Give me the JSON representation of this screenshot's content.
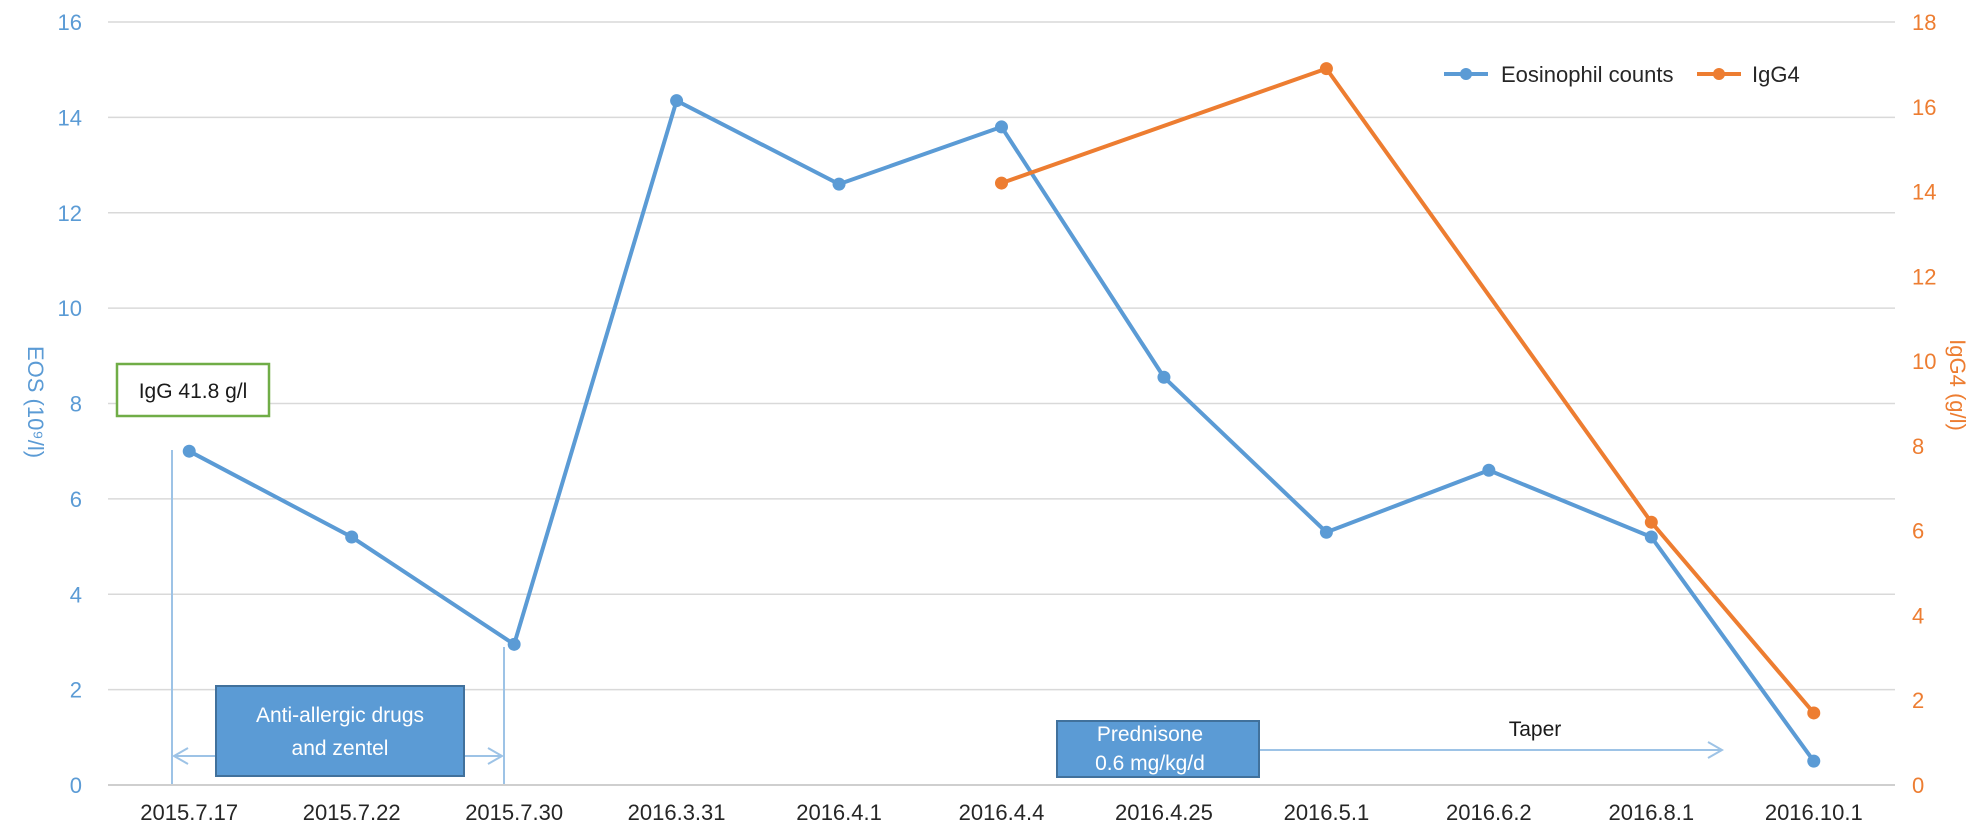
{
  "chart_data": {
    "type": "line",
    "categories": [
      "2015.7.17",
      "2015.7.22",
      "2015.7.30",
      "2016.3.31",
      "2016.4.1",
      "2016.4.4",
      "2016.4.25",
      "2016.5.1",
      "2016.6.2",
      "2016.8.1",
      "2016.10.1"
    ],
    "series": [
      {
        "name": "Eosinophil counts",
        "axis": "left",
        "color": "#5b9bd5",
        "values": [
          7.0,
          5.2,
          2.95,
          14.35,
          12.6,
          13.8,
          8.55,
          5.3,
          6.6,
          5.2,
          0.5
        ]
      },
      {
        "name": "IgG4",
        "axis": "right",
        "color": "#ed7d31",
        "values": [
          null,
          null,
          null,
          null,
          null,
          14.2,
          null,
          16.9,
          null,
          6.2,
          1.7
        ]
      }
    ],
    "ylabel_left": "EOS (10⁹/l)",
    "ylabel_right": "IgG4 (g/l)",
    "ylim_left": [
      0,
      16
    ],
    "yticks_left": [
      "0",
      "2",
      "4",
      "6",
      "8",
      "10",
      "12",
      "14",
      "16"
    ],
    "ylim_right": [
      0,
      18
    ],
    "yticks_right": [
      "0",
      "2",
      "4",
      "6",
      "8",
      "10",
      "12",
      "14",
      "16",
      "18"
    ],
    "grid": true,
    "legend_position": "top-right",
    "annotations": {
      "igg_box": "IgG 41.8 g/l",
      "antiallergic_line1": "Anti-allergic drugs",
      "antiallergic_line2": "and zentel",
      "prednisone_line1": "Prednisone",
      "prednisone_line2": "0.6 mg/kg/d",
      "taper": "Taper"
    }
  },
  "colors": {
    "eos": "#5b9bd5",
    "igg4": "#ed7d31",
    "grid": "#d9d9d9",
    "box_fill": "#5b9bd5",
    "box_border": "#41719c",
    "igg_box_border": "#70ad47"
  }
}
